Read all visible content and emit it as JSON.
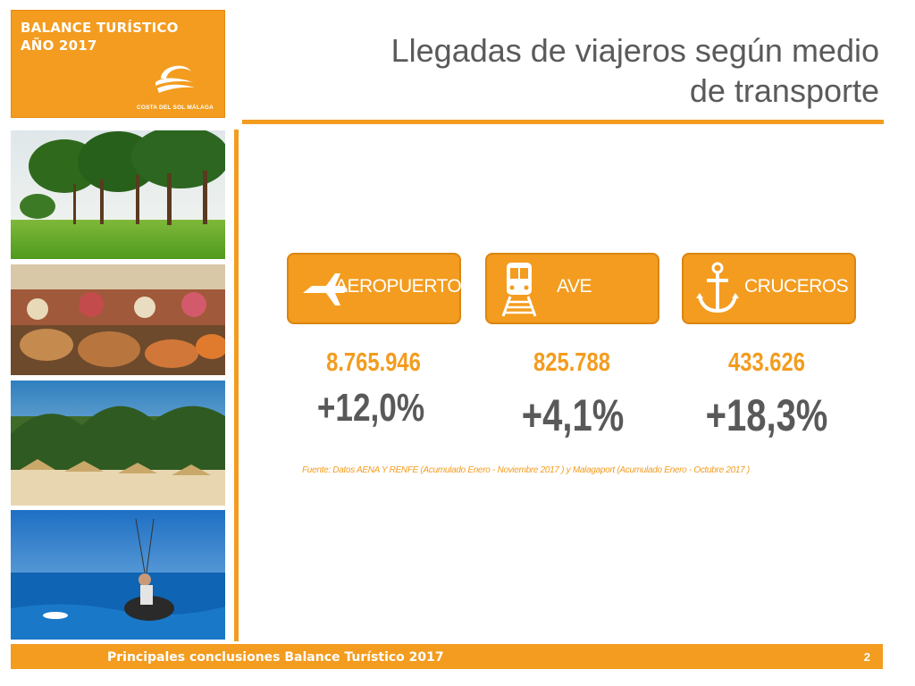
{
  "header": {
    "brand_title": "BALANCE  TURÍSTICO\nAÑO 2017",
    "brand_logo_text": "COSTA DEL SOL MÁLAGA",
    "title": "Llegadas de viajeros según medio\nde transporte"
  },
  "colors": {
    "accent": "#f39c1f",
    "text_dark": "#595959",
    "white": "#ffffff"
  },
  "photos": [
    {
      "name": "golf-course-photo"
    },
    {
      "name": "market-stall-photo"
    },
    {
      "name": "beach-palms-photo"
    },
    {
      "name": "paraglider-sea-photo"
    }
  ],
  "cards": [
    {
      "label": "AEROPUERTO",
      "icon": "airplane-icon",
      "value": "8.765.946",
      "change": "+12,0%"
    },
    {
      "label": "AVE",
      "icon": "train-icon",
      "value": "825.788",
      "change": "+4,1%"
    },
    {
      "label": "CRUCEROS",
      "icon": "anchor-icon",
      "value": "433.626",
      "change": "+18,3%"
    }
  ],
  "source": "Fuente: Datos AENA Y RENFE (Acumulado Enero - Noviembre 2017 ) y Malagaport (Acumulado Enero - Octubre 2017 )",
  "footer": {
    "text": "Principales conclusiones Balance Turístico 2017",
    "page": "2"
  }
}
